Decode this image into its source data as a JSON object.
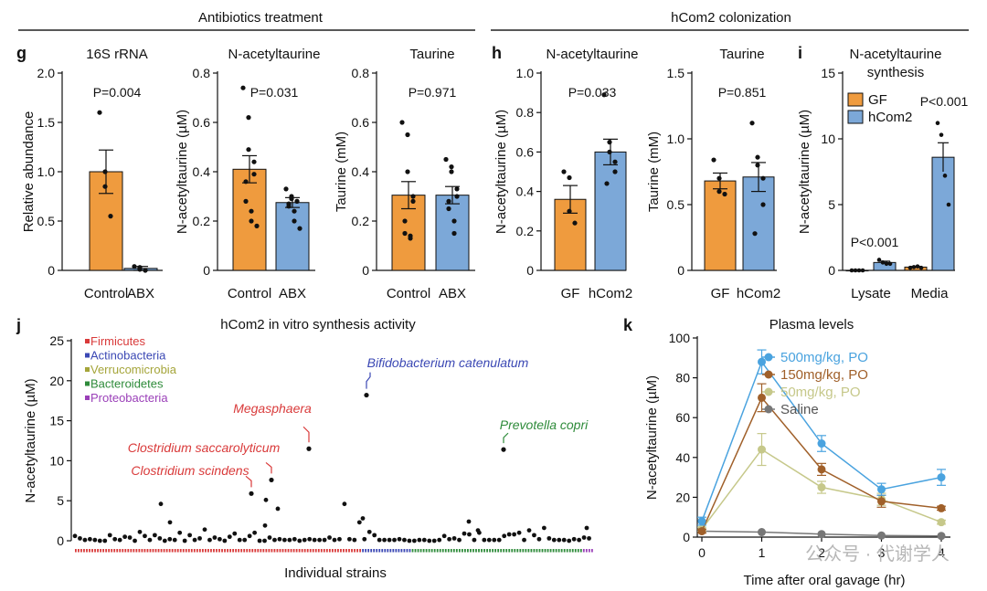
{
  "section_titles": {
    "antibiotics": "Antibiotics treatment",
    "hcom2": "hCom2 colonization"
  },
  "panel_letters": {
    "g": "g",
    "h": "h",
    "i": "i",
    "j": "j",
    "k": "k"
  },
  "colors": {
    "orange": "#ef9b3e",
    "blue": "#7ca8d8",
    "firmicutes": "#d93a3a",
    "actinobacteria": "#3b48b4",
    "verrucomicrobia": "#a5a53a",
    "bacteroidetes": "#2e8b3a",
    "proteobacteria": "#9a3fb8"
  },
  "chart_data": [
    {
      "id": "g1",
      "type": "bar",
      "title": "16S rRNA",
      "ylabel": "Relative abundance",
      "categories": [
        "Control",
        "ABX"
      ],
      "values": [
        1.0,
        0.02
      ],
      "sem": [
        0.22,
        0.02
      ],
      "points": [
        [
          1.6,
          1.0,
          0.85,
          0.55
        ],
        [
          0.04,
          0.03,
          0.01,
          0.0
        ]
      ],
      "ylim": [
        0,
        2.0
      ],
      "yticks": [
        "0",
        "0.5",
        "1.0",
        "1.5",
        "2.0"
      ],
      "yticks_v": [
        0,
        0.5,
        1.0,
        1.5,
        2.0
      ],
      "pvalue": "P=0.004"
    },
    {
      "id": "g2",
      "type": "bar",
      "title": "N-acetyltaurine",
      "ylabel": "N-acetyltaurine (µM)",
      "categories": [
        "Control",
        "ABX"
      ],
      "values": [
        0.41,
        0.275
      ],
      "sem": [
        0.055,
        0.02
      ],
      "points": [
        [
          0.74,
          0.62,
          0.49,
          0.44,
          0.39,
          0.36,
          0.28,
          0.24,
          0.2,
          0.18
        ],
        [
          0.33,
          0.3,
          0.29,
          0.28,
          0.28,
          0.27,
          0.26,
          0.24,
          0.2,
          0.17
        ]
      ],
      "ylim": [
        0,
        0.8
      ],
      "yticks": [
        "0",
        "0.2",
        "0.4",
        "0.6",
        "0.8"
      ],
      "yticks_v": [
        0,
        0.2,
        0.4,
        0.6,
        0.8
      ],
      "pvalue": "P=0.031"
    },
    {
      "id": "g3",
      "type": "bar",
      "title": "Taurine",
      "ylabel": "Taurine (mM)",
      "categories": [
        "Control",
        "ABX"
      ],
      "values": [
        0.305,
        0.305
      ],
      "sem": [
        0.055,
        0.035
      ],
      "points": [
        [
          0.6,
          0.55,
          0.4,
          0.3,
          0.28,
          0.2,
          0.15,
          0.14,
          0.13
        ],
        [
          0.45,
          0.42,
          0.4,
          0.33,
          0.3,
          0.28,
          0.25,
          0.2,
          0.15
        ]
      ],
      "ylim": [
        0,
        0.8
      ],
      "yticks": [
        "0",
        "0.2",
        "0.4",
        "0.6",
        "0.8"
      ],
      "yticks_v": [
        0,
        0.2,
        0.4,
        0.6,
        0.8
      ],
      "pvalue": "P=0.971"
    },
    {
      "id": "h1",
      "type": "bar",
      "title": "N-acetyltaurine",
      "ylabel": "N-acetyltaurine (µM)",
      "categories": [
        "GF",
        "hCom2"
      ],
      "values": [
        0.36,
        0.6
      ],
      "sem": [
        0.07,
        0.065
      ],
      "points": [
        [
          0.5,
          0.47,
          0.3,
          0.24
        ],
        [
          0.89,
          0.65,
          0.6,
          0.55,
          0.5,
          0.44
        ]
      ],
      "ylim": [
        0,
        1.0
      ],
      "yticks": [
        "0",
        "0.2",
        "0.4",
        "0.6",
        "0.8",
        "1.0"
      ],
      "yticks_v": [
        0,
        0.2,
        0.4,
        0.6,
        0.8,
        1.0
      ],
      "pvalue": "P=0.033"
    },
    {
      "id": "h2",
      "type": "bar",
      "title": "Taurine",
      "ylabel": "Taurine (mM)",
      "categories": [
        "GF",
        "hCom2"
      ],
      "values": [
        0.68,
        0.71
      ],
      "sem": [
        0.06,
        0.11
      ],
      "points": [
        [
          0.84,
          0.7,
          0.6,
          0.58
        ],
        [
          1.12,
          0.86,
          0.8,
          0.7,
          0.5,
          0.28
        ]
      ],
      "ylim": [
        0,
        1.5
      ],
      "yticks": [
        "0",
        "0.5",
        "1.0",
        "1.5"
      ],
      "yticks_v": [
        0,
        0.5,
        1.0,
        1.5
      ],
      "pvalue": "P=0.851"
    },
    {
      "id": "i",
      "type": "bar",
      "title": "N-acetyltaurine",
      "title2": "synthesis",
      "ylabel": "N-acetyltaurine (µM)",
      "groups": [
        "Lysate",
        "Media"
      ],
      "series": [
        {
          "name": "GF",
          "values": [
            0.0,
            0.25
          ],
          "sem": [
            0.0,
            0.05
          ],
          "points": [
            [
              0,
              0,
              0,
              0
            ],
            [
              0.2,
              0.25,
              0.3,
              0.2
            ]
          ]
        },
        {
          "name": "hCom2",
          "values": [
            0.6,
            8.6
          ],
          "sem": [
            0.1,
            1.1
          ],
          "points": [
            [
              0.8,
              0.6,
              0.5,
              0.5
            ],
            [
              11.2,
              10.3,
              7.2,
              5.0
            ]
          ]
        }
      ],
      "ylim": [
        0,
        15
      ],
      "yticks": [
        "0",
        "5",
        "10",
        "15"
      ],
      "yticks_v": [
        0,
        5,
        10,
        15
      ],
      "pvalues": [
        "P<0.001",
        "P<0.001"
      ]
    },
    {
      "id": "j",
      "type": "scatter",
      "title": "hCom2 in vitro synthesis activity",
      "xlabel": "Individual strains",
      "ylabel": "N-acetyltaurine (µM)",
      "ylim": [
        0,
        25
      ],
      "yticks": [
        "0",
        "5",
        "10",
        "15",
        "20",
        "25"
      ],
      "yticks_v": [
        0,
        5,
        10,
        15,
        20,
        25
      ],
      "legend": [
        "Firmicutes",
        "Actinobacteria",
        "Verrucomicrobia",
        "Bacteroidetes",
        "Proteobacteria"
      ],
      "groups_count": {
        "Firmicutes": 104,
        "Actinobacteria": 18,
        "Verrucomicrobia": 0,
        "Bacteroidetes": 62,
        "Proteobacteria": 4
      },
      "values": [
        0.6,
        0.3,
        0.1,
        0.2,
        0.1,
        0.0,
        0.0,
        0.7,
        0.2,
        0.1,
        0.5,
        0.4,
        0.0,
        1.1,
        0.6,
        0.1,
        0.7,
        0.3,
        0.0,
        0.2,
        0.1,
        1.0,
        0.0,
        0.7,
        0.1,
        0.3,
        1.4,
        0.1,
        0.4,
        0.2,
        0.0,
        0.5,
        0.9,
        0.1,
        0.1,
        0.6,
        1.0,
        0.0,
        0.0,
        0.4,
        0.1,
        0.2,
        0.1,
        0.1,
        0.2,
        0.0,
        0.1,
        0.2,
        0.1,
        0.1,
        0.1,
        0.4,
        0.1,
        0.2,
        4.6,
        0.2,
        0.1,
        2.3,
        0.2,
        1.1,
        0.7,
        0.1,
        0.1,
        0.1,
        0.1,
        0.2,
        0.1,
        0.0,
        0.0,
        0.1,
        0.1,
        0.0,
        0.0,
        0.1,
        0.6,
        0.2,
        0.3,
        0.1,
        0.9,
        0.8,
        0.1,
        1.0,
        0.1,
        0.1,
        0.1,
        0.1,
        0.6,
        0.8,
        0.8,
        1.0,
        0.1,
        1.3,
        0.7,
        0.2,
        1.6,
        0.3,
        0.1,
        0.1,
        0.1,
        0.0,
        0.2,
        0.1,
        0.4,
        0.3
      ],
      "labels": [
        {
          "text": "Bifidobacterium catenulatum",
          "value": 18.2,
          "color": "actinobacteria"
        },
        {
          "text": "Megasphaera",
          "value": 11.5,
          "color": "firmicutes"
        },
        {
          "text": "Clostridium saccarolyticum",
          "value": 7.6,
          "color": "firmicutes"
        },
        {
          "text": "Clostridium scindens",
          "value": 5.9,
          "color": "firmicutes"
        },
        {
          "text": "Prevotella copri",
          "value": 11.4,
          "color": "bacteroidetes"
        }
      ]
    },
    {
      "id": "k",
      "type": "line",
      "title": "Plasma levels",
      "xlabel": "Time after oral gavage (hr)",
      "ylabel": "N-acetyltaurine (µM)",
      "x": [
        0,
        1,
        2,
        3,
        4
      ],
      "xticks": [
        "0",
        "1",
        "2",
        "3",
        "4"
      ],
      "ylim": [
        0,
        100
      ],
      "yticks": [
        "0",
        "20",
        "40",
        "60",
        "80",
        "100"
      ],
      "yticks_v": [
        0,
        20,
        40,
        60,
        80,
        100
      ],
      "series": [
        {
          "name": "500mg/kg, PO",
          "color": "#4aa3df",
          "values": [
            8,
            88,
            47,
            24,
            30
          ],
          "err": [
            2,
            6,
            4,
            3,
            4
          ]
        },
        {
          "name": "150mg/kg, PO",
          "color": "#a0602a",
          "values": [
            3,
            70,
            34,
            18,
            14.5
          ],
          "err": [
            1,
            7,
            3,
            3,
            1
          ]
        },
        {
          "name": "50mg/kg, PO",
          "color": "#c6c88a",
          "values": [
            4,
            44,
            25,
            19,
            7.5
          ],
          "err": [
            1,
            8,
            3,
            3,
            1
          ]
        },
        {
          "name": "Saline",
          "color": "#777777",
          "values": [
            3,
            2.5,
            1.5,
            0.8,
            0.6
          ],
          "err": [
            0.5,
            0.5,
            0.3,
            0.2,
            0.2
          ]
        }
      ]
    }
  ],
  "watermark": "公众号 · 代谢学人"
}
